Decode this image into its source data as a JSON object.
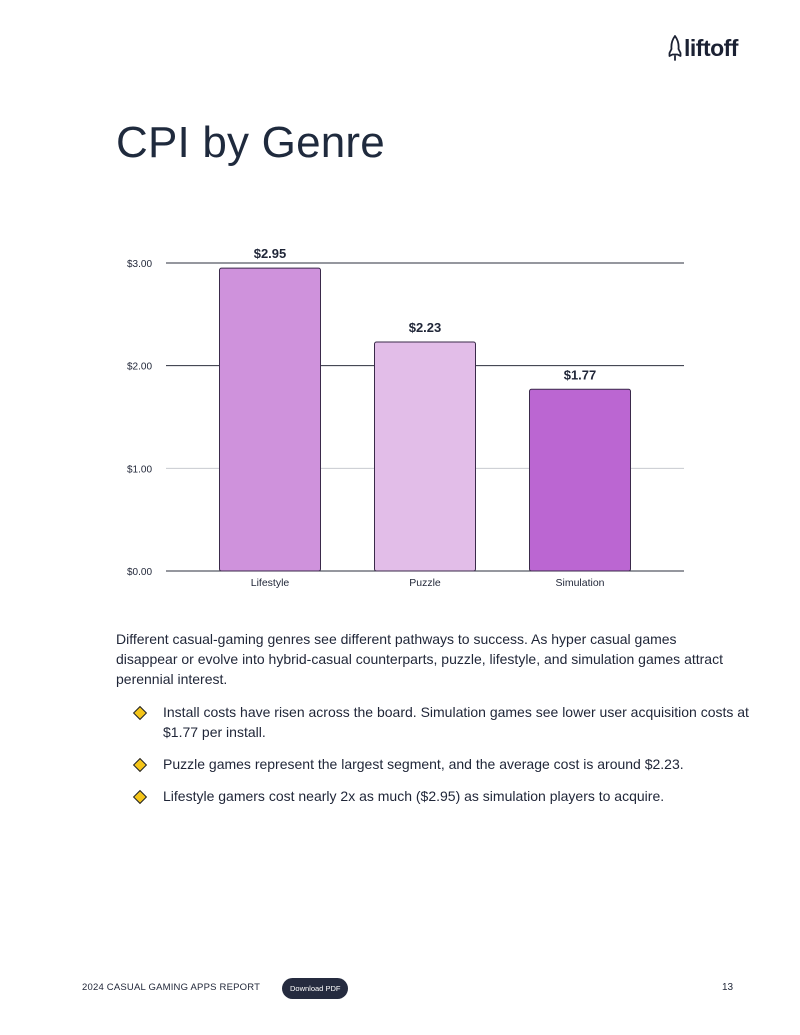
{
  "header": {
    "logo_text": "liftoff"
  },
  "page": {
    "title": "CPI by Genre"
  },
  "chart_data": {
    "type": "bar",
    "title": "",
    "xlabel": "",
    "ylabel": "",
    "categories": [
      "Lifestyle",
      "Puzzle",
      "Simulation"
    ],
    "values": [
      2.95,
      2.23,
      1.77
    ],
    "value_labels": [
      "$2.95",
      "$2.23",
      "$1.77"
    ],
    "bar_colors": [
      "#cf92dc",
      "#e2bde8",
      "#bb66d2"
    ],
    "ylim": [
      0,
      3
    ],
    "yticks": [
      0,
      1,
      2,
      3
    ],
    "ytick_labels": [
      "$0.00",
      "$1.00",
      "$2.00",
      "$3.00"
    ],
    "grid": true,
    "legend": "none"
  },
  "body": {
    "paragraph": "Different casual-gaming genres see different pathways to success. As hyper casual games disappear or evolve into hybrid-casual counterparts, puzzle, lifestyle, and simulation games attract perennial interest.",
    "bullets": [
      "Install costs have risen across the board. Simulation games see lower user acquisition costs at $1.77 per install.",
      "Puzzle games represent the largest segment, and the average cost is around $2.23.",
      "Lifestyle gamers cost nearly 2x as much ($2.95) as simulation players to acquire."
    ]
  },
  "footer": {
    "report_name": "2024 CASUAL GAMING APPS REPORT",
    "download_label": "Download PDF",
    "page_number": "13"
  },
  "colors": {
    "text": "#1f2537",
    "accent": "#f5c518",
    "button": "#252b3f"
  },
  "icons": {
    "logo": "rocket-icon",
    "bullet": "diamond-bullet-icon"
  }
}
